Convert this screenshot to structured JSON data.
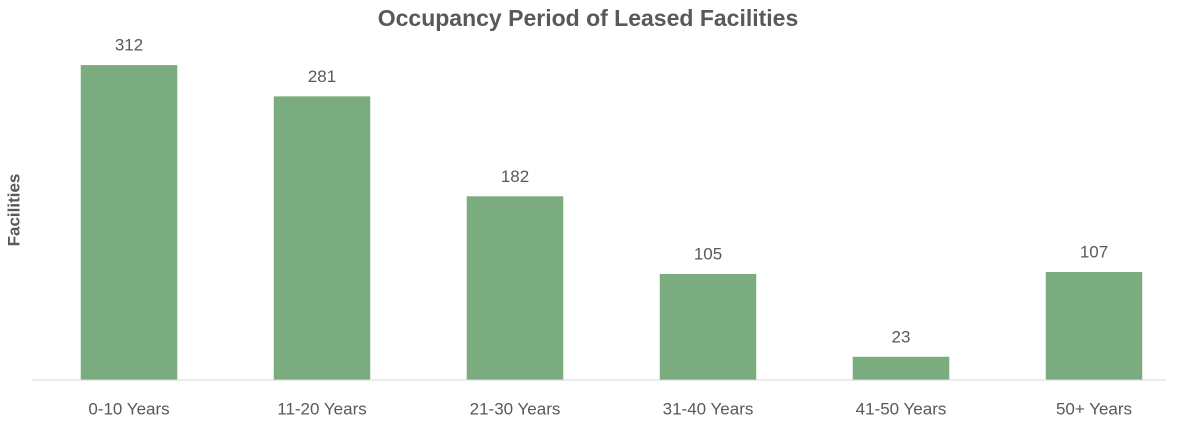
{
  "chart_data": {
    "type": "bar",
    "title": "Occupancy Period of Leased Facilities",
    "y_label": "Facilities",
    "categories": [
      "0-10 Years",
      "11-20 Years",
      "21-30 Years",
      "31-40 Years",
      "41-50 Years",
      "50+ Years"
    ],
    "values": [
      312,
      281,
      182,
      105,
      23,
      107
    ],
    "color": "#7bac7f",
    "ylim": [
      0,
      320
    ],
    "grid": false
  }
}
